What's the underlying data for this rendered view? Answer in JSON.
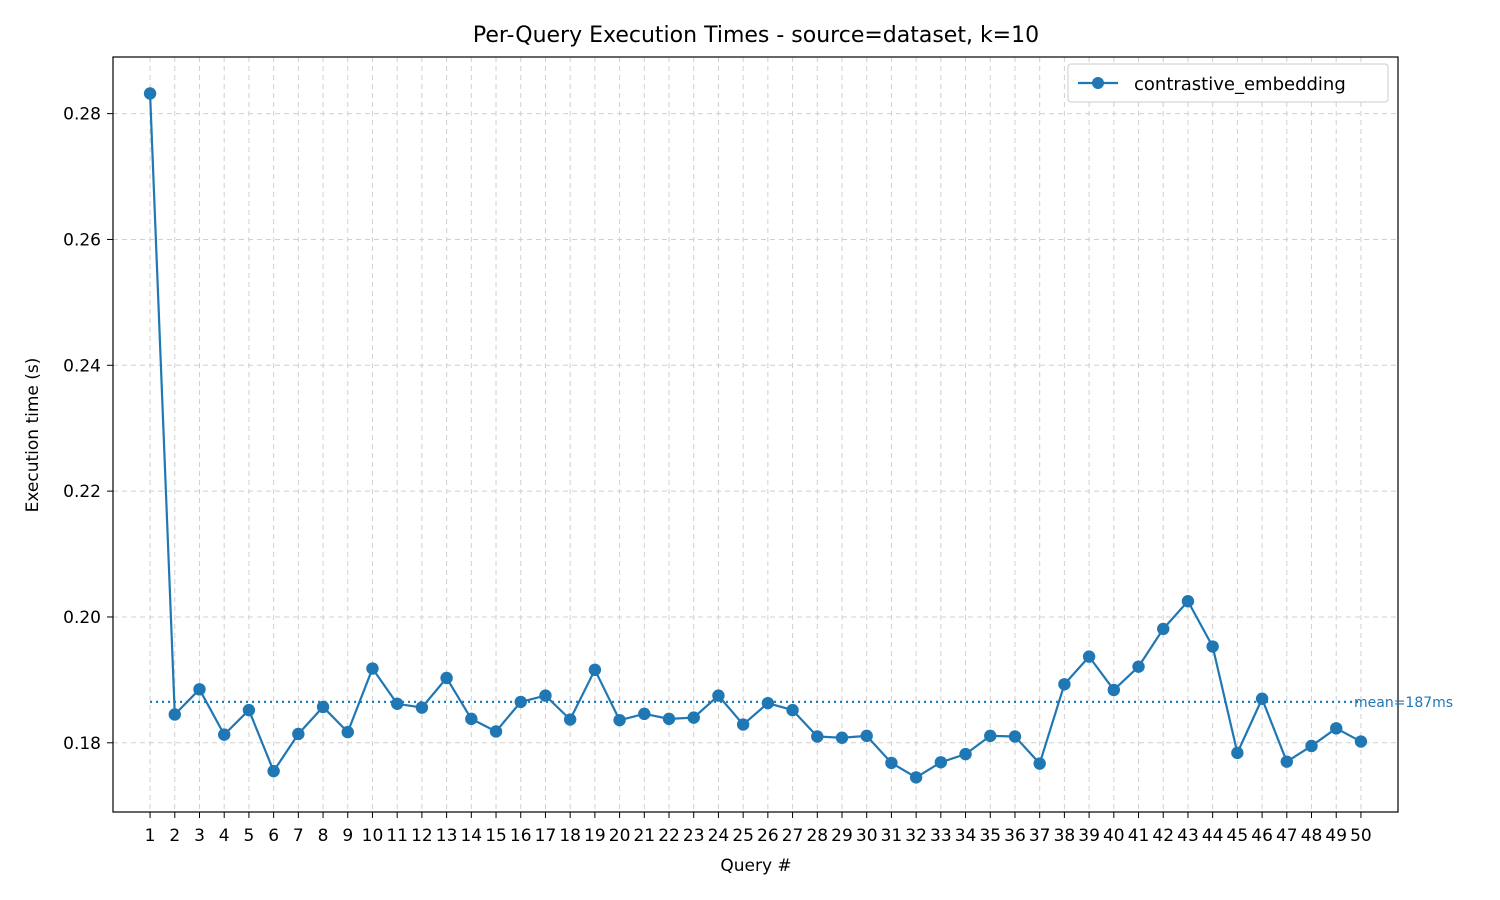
{
  "chart_data": {
    "type": "line",
    "title": "Per-Query Execution Times - source=dataset, k=10",
    "xlabel": "Query #",
    "ylabel": "Execution time (s)",
    "ylim": [
      0.169,
      0.289
    ],
    "xlim": [
      -0.5,
      51.5
    ],
    "y_ticks": [
      "0.18",
      "0.20",
      "0.22",
      "0.24",
      "0.26",
      "0.28"
    ],
    "y_tick_values": [
      0.18,
      0.2,
      0.22,
      0.24,
      0.26,
      0.28
    ],
    "x_ticks": [
      "1",
      "2",
      "3",
      "4",
      "5",
      "6",
      "7",
      "8",
      "9",
      "10",
      "11",
      "12",
      "13",
      "14",
      "15",
      "16",
      "17",
      "18",
      "19",
      "20",
      "21",
      "22",
      "23",
      "24",
      "25",
      "26",
      "27",
      "28",
      "29",
      "30",
      "31",
      "32",
      "33",
      "34",
      "35",
      "36",
      "37",
      "38",
      "39",
      "40",
      "41",
      "42",
      "43",
      "44",
      "45",
      "46",
      "47",
      "48",
      "49",
      "50"
    ],
    "grid": true,
    "legend_position": "top-right",
    "series": [
      {
        "name": "contrastive_embedding",
        "color": "#1f77b4",
        "marker": "circle",
        "x": [
          1,
          2,
          3,
          4,
          5,
          6,
          7,
          8,
          9,
          10,
          11,
          12,
          13,
          14,
          15,
          16,
          17,
          18,
          19,
          20,
          21,
          22,
          23,
          24,
          25,
          26,
          27,
          28,
          29,
          30,
          31,
          32,
          33,
          34,
          35,
          36,
          37,
          38,
          39,
          40,
          41,
          42,
          43,
          44,
          45,
          46,
          47,
          48,
          49,
          50
        ],
        "values": [
          0.2832,
          0.1845,
          0.1885,
          0.1813,
          0.1852,
          0.1755,
          0.1814,
          0.1857,
          0.1817,
          0.1918,
          0.1862,
          0.1856,
          0.1903,
          0.1838,
          0.1818,
          0.1865,
          0.1875,
          0.1837,
          0.1916,
          0.1836,
          0.1846,
          0.1838,
          0.184,
          0.1875,
          0.1829,
          0.1863,
          0.1852,
          0.181,
          0.1808,
          0.1811,
          0.1768,
          0.1745,
          0.1769,
          0.1782,
          0.1811,
          0.181,
          0.1767,
          0.1893,
          0.1937,
          0.1884,
          0.1921,
          0.1981,
          0.2025,
          0.1953,
          0.1784,
          0.187,
          0.177,
          0.1795,
          0.1823,
          0.1802
        ]
      }
    ],
    "mean": {
      "value": 0.1865,
      "label": "mean=187ms",
      "color": "#1f77b4"
    }
  }
}
